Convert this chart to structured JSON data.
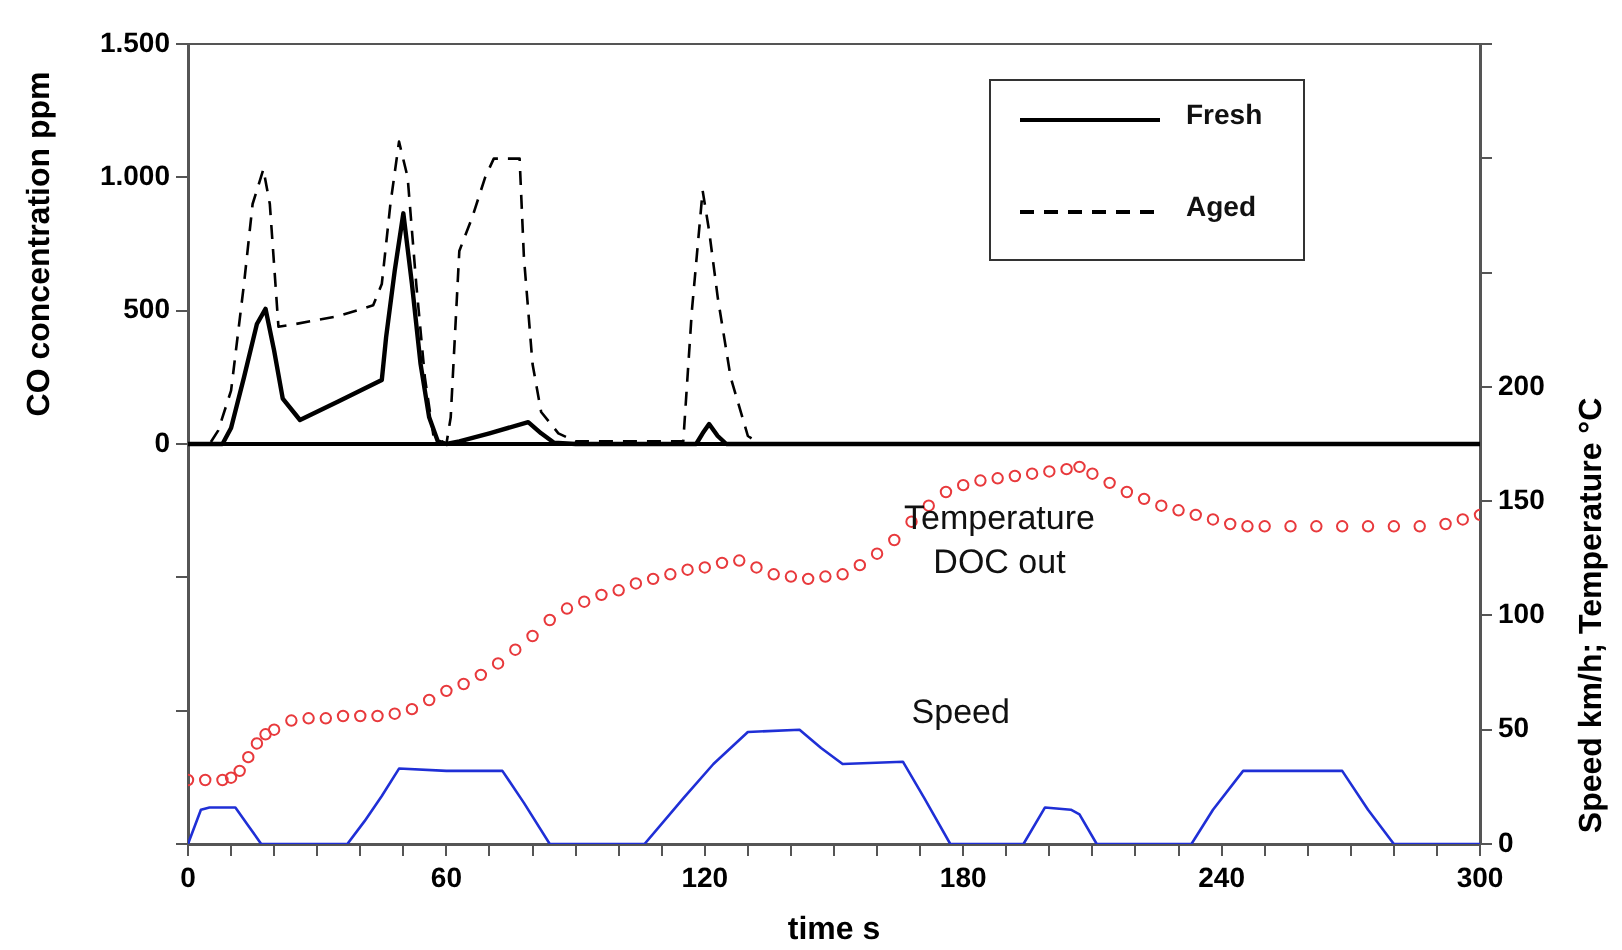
{
  "chart_data": {
    "type": "line",
    "xlabel": "time s",
    "ylabel": "CO concentration ppm",
    "y2label": "Speed km/h; Temperature °C",
    "xlim": [
      0,
      300
    ],
    "xticks": [
      0,
      {
        "value": 10,
        "label": null
      },
      {
        "value": 20,
        "label": null
      },
      {
        "value": 30,
        "label": null
      },
      {
        "value": 40,
        "label": null
      },
      {
        "value": 50,
        "label": null
      },
      60,
      {
        "value": 70,
        "label": null
      },
      {
        "value": 80,
        "label": null
      },
      {
        "value": 90,
        "label": null
      },
      {
        "value": 100,
        "label": null
      },
      {
        "value": 110,
        "label": null
      },
      120,
      {
        "value": 130,
        "label": null
      },
      {
        "value": 140,
        "label": null
      },
      {
        "value": 150,
        "label": null
      },
      {
        "value": 160,
        "label": null
      },
      {
        "value": 170,
        "label": null
      },
      180,
      {
        "value": 190,
        "label": null
      },
      {
        "value": 200,
        "label": null
      },
      {
        "value": 210,
        "label": null
      },
      {
        "value": 220,
        "label": null
      },
      {
        "value": 230,
        "label": null
      },
      240,
      {
        "value": 250,
        "label": null
      },
      {
        "value": 260,
        "label": null
      },
      {
        "value": 270,
        "label": null
      },
      {
        "value": 280,
        "label": null
      },
      {
        "value": 290,
        "label": null
      },
      300
    ],
    "ylim": [
      -1500,
      1500
    ],
    "yticks": [
      {
        "value": -1500,
        "label": null
      },
      {
        "value": -1000,
        "label": null
      },
      {
        "value": -500,
        "label": null
      },
      0,
      500,
      {
        "value": 1000,
        "label": "1.000"
      },
      {
        "value": 1500,
        "label": "1.500"
      }
    ],
    "y2lim": [
      0,
      350
    ],
    "y2ticks": [
      0,
      50,
      100,
      150,
      200,
      {
        "value": 250,
        "label": null
      },
      {
        "value": 300,
        "label": null
      },
      {
        "value": 350,
        "label": null
      }
    ],
    "legend": "top right",
    "ref_lines": [
      {
        "axis": "y",
        "value": 0,
        "color": "#000000"
      }
    ],
    "series": [
      {
        "name": "Fresh",
        "type": "line",
        "color": "#000000",
        "line_style": "solid",
        "marker": "none",
        "x": [
          0,
          8,
          10,
          13,
          16,
          18,
          20,
          22,
          26,
          35,
          45,
          46,
          48,
          50,
          52,
          54,
          56,
          58,
          60,
          63,
          70,
          79,
          82,
          85,
          90,
          118,
          119.5,
          121,
          123,
          125,
          300
        ],
        "values": [
          0,
          0,
          60,
          250,
          450,
          507,
          350,
          170,
          90,
          160,
          240,
          400,
          650,
          865,
          600,
          300,
          100,
          10,
          0,
          10,
          40,
          82,
          40,
          5,
          0,
          0,
          40,
          75,
          30,
          0,
          0
        ]
      },
      {
        "name": "Aged",
        "type": "line",
        "color": "#000000",
        "line_style": "dashed",
        "marker": "none",
        "x": [
          0,
          5,
          7,
          10,
          13,
          15,
          17.5,
          19,
          21,
          25,
          35,
          43,
          45,
          47,
          49,
          51,
          53,
          55,
          57,
          60,
          61,
          63,
          66,
          69,
          71,
          77,
          78,
          80,
          82,
          86,
          90,
          115,
          117,
          119.5,
          121,
          123,
          126,
          130,
          133,
          300
        ],
        "values": [
          0,
          0,
          50,
          200,
          600,
          900,
          1030,
          900,
          440,
          450,
          480,
          520,
          600,
          900,
          1134,
          1000,
          600,
          250,
          30,
          0,
          100,
          724,
          850,
          1000,
          1070,
          1070,
          700,
          300,
          120,
          40,
          10,
          10,
          500,
          950,
          800,
          550,
          250,
          30,
          0,
          0
        ]
      },
      {
        "name": "Temperature\nDOC out",
        "type": "scatter",
        "axis": "y2",
        "color": "#e8393c",
        "marker": "circle",
        "x": [
          0,
          4,
          8,
          10,
          12,
          14,
          16,
          18,
          20,
          24,
          28,
          32,
          36,
          40,
          44,
          48,
          52,
          56,
          60,
          64,
          68,
          72,
          76,
          80,
          84,
          88,
          92,
          96,
          100,
          104,
          108,
          112,
          116,
          120,
          124,
          128,
          132,
          136,
          140,
          144,
          148,
          152,
          156,
          160,
          164,
          168,
          172,
          176,
          180,
          184,
          188,
          192,
          196,
          200,
          204,
          207,
          210,
          214,
          218,
          222,
          226,
          230,
          234,
          238,
          242,
          246,
          250,
          256,
          262,
          268,
          274,
          280,
          286,
          292,
          296,
          300
        ],
        "values": [
          28,
          28,
          28,
          29,
          32,
          38,
          44,
          48,
          50,
          54,
          55,
          55,
          56,
          56,
          56,
          57,
          59,
          63,
          67,
          70,
          74,
          79,
          85,
          91,
          98,
          103,
          106,
          109,
          111,
          114,
          116,
          118,
          120,
          121,
          123,
          124,
          121,
          118,
          117,
          116,
          117,
          118,
          122,
          127,
          133,
          141,
          148,
          154,
          157,
          159,
          160,
          161,
          162,
          163,
          164,
          165,
          162,
          158,
          154,
          151,
          148,
          146,
          144,
          142,
          140,
          139,
          139,
          139,
          139,
          139,
          139,
          139,
          139,
          140,
          142,
          144
        ]
      },
      {
        "name": "Speed",
        "type": "line",
        "axis": "y2",
        "color": "#1f2fd6",
        "line_style": "solid",
        "marker": "none",
        "x": [
          0,
          3,
          5,
          11,
          14,
          17,
          37,
          41,
          45,
          49,
          60,
          73,
          78,
          84,
          106,
          115,
          122,
          130,
          142,
          147,
          152,
          166,
          171,
          177,
          194,
          199,
          205,
          207,
          211,
          233,
          238,
          245,
          268,
          274,
          280,
          300
        ],
        "values": [
          0,
          15,
          16,
          16,
          8,
          0,
          0,
          10,
          21,
          33,
          32,
          32,
          18,
          0,
          0,
          20,
          35,
          49,
          50,
          42,
          35,
          36,
          20,
          0,
          0,
          16,
          15,
          13,
          0,
          0,
          15,
          32,
          32,
          15,
          0,
          0
        ]
      }
    ]
  }
}
